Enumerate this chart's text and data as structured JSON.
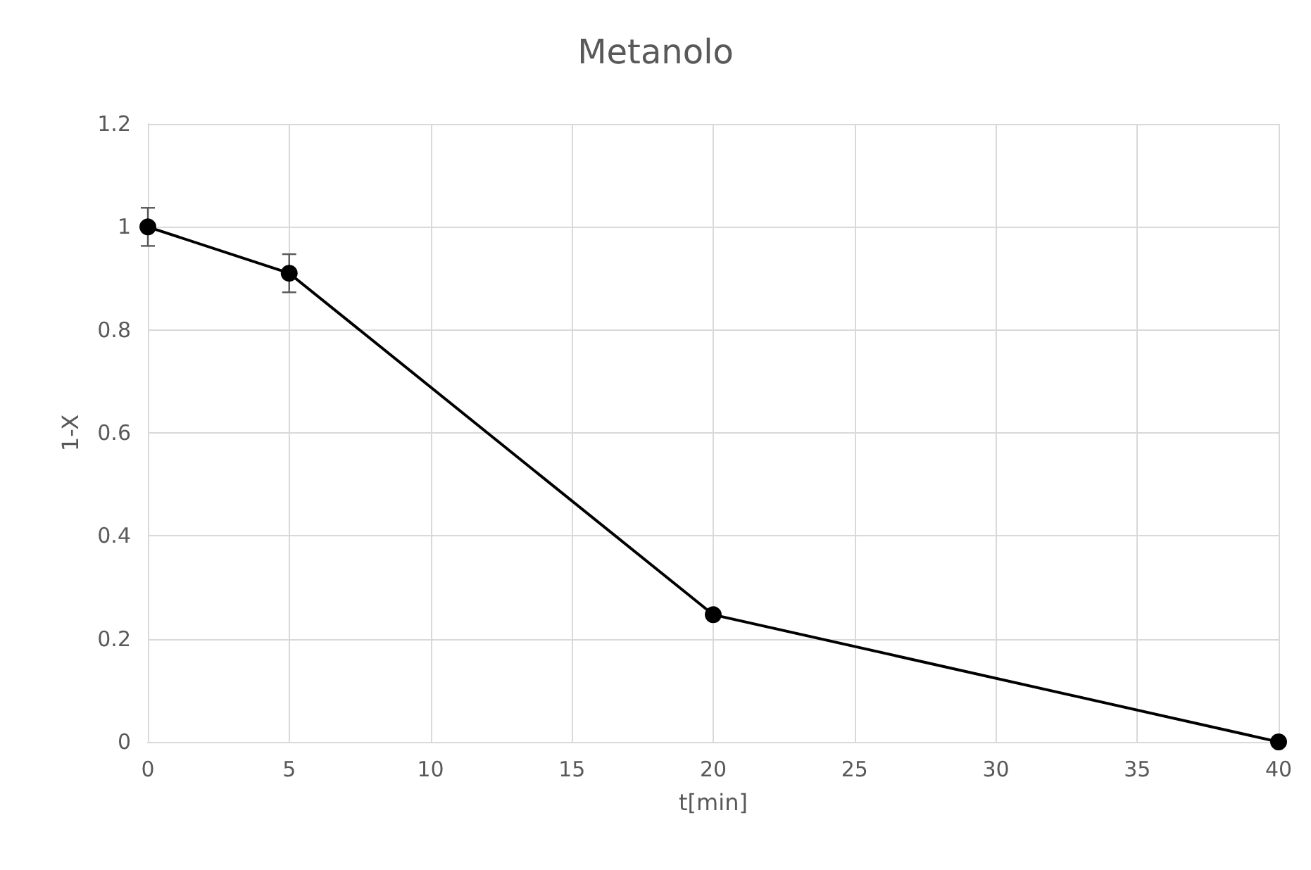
{
  "chart_data": {
    "type": "line",
    "title": "Metanolo",
    "xlabel": "t[min]",
    "ylabel": "1-X",
    "x": [
      0,
      5,
      20,
      40
    ],
    "series": [
      {
        "color": "#000000",
        "values": [
          1,
          0.91,
          0.247,
          0
        ],
        "errors": [
          0.037,
          0.037,
          null,
          null
        ]
      }
    ],
    "xlim": [
      0,
      40
    ],
    "xticks": [
      0,
      5,
      10,
      15,
      20,
      25,
      30,
      35,
      40
    ],
    "ylim": [
      0,
      1.2
    ],
    "yticks": [
      0,
      0.2,
      0.4,
      0.6,
      0.8,
      1,
      1.2
    ],
    "grid": true,
    "marker": "circle",
    "line_style": "solid"
  }
}
